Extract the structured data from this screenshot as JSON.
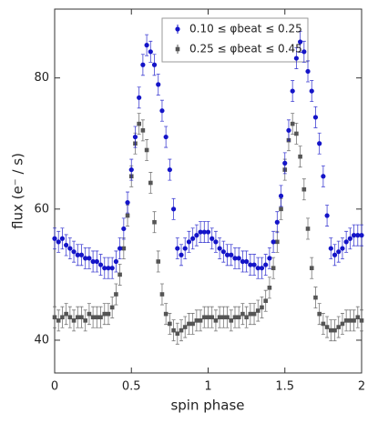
{
  "chart_data": {
    "type": "scatter",
    "xlabel": "spin phase",
    "ylabel": "flux (e⁻ / s)",
    "xlim": [
      0,
      2
    ],
    "xticks": [
      0,
      0.5,
      1,
      1.5,
      2
    ],
    "ylim": [
      35,
      90.5
    ],
    "yticks": [
      40,
      60,
      80
    ],
    "legend": "upper center",
    "x": [
      0,
      0.025,
      0.05,
      0.075,
      0.1,
      0.125,
      0.15,
      0.175,
      0.2,
      0.225,
      0.25,
      0.275,
      0.3,
      0.325,
      0.35,
      0.375,
      0.4,
      0.425,
      0.45,
      0.475,
      0.5,
      0.525,
      0.55,
      0.575,
      0.6,
      0.625,
      0.65,
      0.675,
      0.7,
      0.725,
      0.75,
      0.775,
      0.8,
      0.825,
      0.85,
      0.875,
      0.9,
      0.925,
      0.95,
      0.975,
      1,
      1.025,
      1.05,
      1.075,
      1.1,
      1.125,
      1.15,
      1.175,
      1.2,
      1.225,
      1.25,
      1.275,
      1.3,
      1.325,
      1.35,
      1.375,
      1.4,
      1.425,
      1.45,
      1.475,
      1.5,
      1.525,
      1.55,
      1.575,
      1.6,
      1.625,
      1.65,
      1.675,
      1.7,
      1.725,
      1.75,
      1.775,
      1.8,
      1.825,
      1.85,
      1.875,
      1.9,
      1.925,
      1.95,
      1.975,
      2
    ],
    "series": [
      {
        "name": "0.10 ≤ φbeat ≤ 0.25",
        "color": "#1414c8",
        "marker": "circle",
        "error": 1.6,
        "values": [
          55.5,
          55,
          55.5,
          54.5,
          54,
          53.5,
          53,
          53,
          52.5,
          52.5,
          52,
          52,
          51.5,
          51,
          51,
          51,
          52,
          54,
          57,
          61,
          66,
          71,
          77,
          82,
          85,
          84,
          82,
          79,
          75,
          71,
          66,
          60,
          54,
          53,
          54,
          55,
          55.5,
          56,
          56.5,
          56.5,
          56.5,
          55.5,
          55,
          54,
          53.5,
          53,
          53,
          52.5,
          52.5,
          52,
          52,
          51.5,
          51.5,
          51,
          51,
          51.5,
          52.5,
          55,
          58,
          62,
          67,
          72,
          78,
          83,
          85.5,
          84,
          81,
          78,
          74,
          70,
          65,
          59,
          54,
          53,
          53.5,
          54,
          55,
          55.5,
          56,
          56,
          56
        ]
      },
      {
        "name": "0.25 ≤ φbeat ≤ 0.45",
        "color": "#555555",
        "marker": "square",
        "error": 1.6,
        "values": [
          43.5,
          43,
          43.5,
          44,
          43.5,
          43,
          43.5,
          43.5,
          43,
          44,
          43.5,
          43.5,
          43.5,
          44,
          44,
          45,
          47,
          50,
          54,
          59,
          65,
          70,
          73,
          72,
          69,
          64,
          58,
          52,
          47,
          44,
          42.5,
          41.5,
          41,
          41.5,
          42,
          42.5,
          42.5,
          43,
          43,
          43.5,
          43.5,
          43.5,
          43,
          43.5,
          43.5,
          43.5,
          43,
          43.5,
          43.5,
          44,
          43.5,
          44,
          44,
          44.5,
          45,
          46,
          48,
          51,
          55,
          60,
          66,
          70.5,
          73,
          71.5,
          68,
          63,
          57,
          51,
          46.5,
          44,
          42.5,
          42,
          41.5,
          41.5,
          42,
          42.5,
          43,
          43,
          43,
          43.5,
          43
        ]
      }
    ]
  }
}
